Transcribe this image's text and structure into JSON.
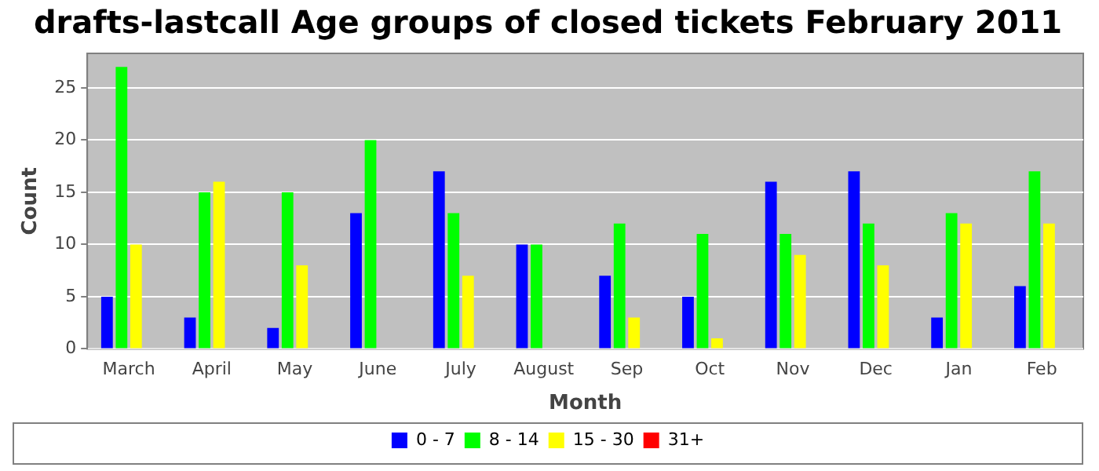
{
  "chart_data": {
    "type": "bar",
    "title": "drafts-lastcall Age groups of closed tickets February 2011",
    "xlabel": "Month",
    "ylabel": "Count",
    "categories": [
      "March",
      "April",
      "May",
      "June",
      "July",
      "August",
      "Sep",
      "Oct",
      "Nov",
      "Dec",
      "Jan",
      "Feb"
    ],
    "series": [
      {
        "name": "0 - 7",
        "color": "#0000ff",
        "values": [
          5,
          3,
          2,
          13,
          17,
          10,
          7,
          5,
          16,
          17,
          3,
          6
        ]
      },
      {
        "name": "8 - 14",
        "color": "#00ff00",
        "values": [
          27,
          15,
          15,
          20,
          13,
          10,
          12,
          11,
          11,
          12,
          13,
          17
        ]
      },
      {
        "name": "15 - 30",
        "color": "#ffff00",
        "values": [
          10,
          16,
          8,
          0,
          7,
          0,
          3,
          1,
          9,
          8,
          12,
          12
        ]
      },
      {
        "name": "31+",
        "color": "#ff0000",
        "values": [
          0,
          0,
          0,
          0,
          0,
          0,
          0,
          0,
          0,
          0,
          0,
          0
        ]
      }
    ],
    "ylim": [
      0,
      28.3
    ],
    "yticks": [
      0,
      5,
      10,
      15,
      20,
      25
    ],
    "grid": "y",
    "legend": "bottom"
  }
}
